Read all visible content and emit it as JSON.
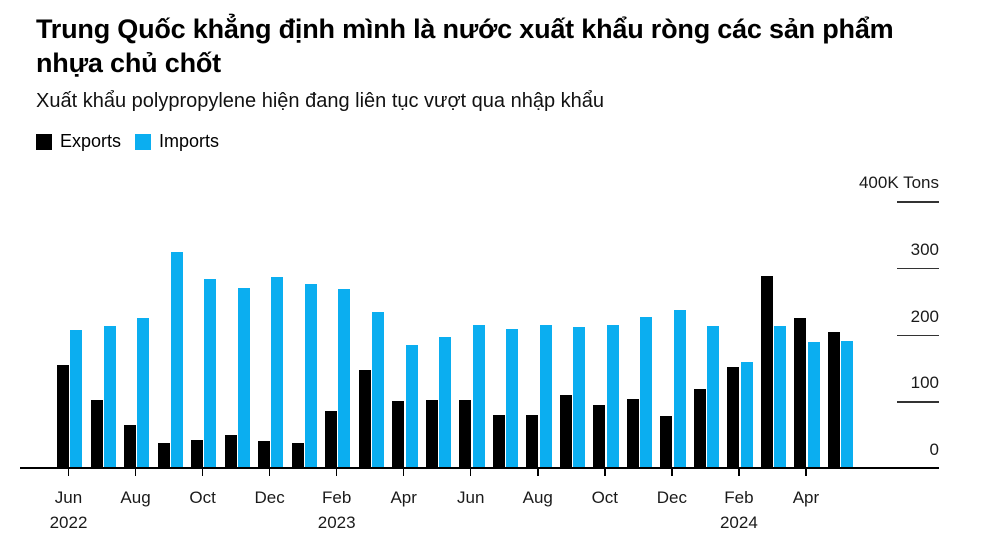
{
  "header": {
    "title": "Trung Quốc khẳng định mình là nước xuất khẩu ròng các sản phẩm nhựa chủ chốt",
    "subtitle": "Xuất khẩu polypropylene hiện đang liên tục vượt qua nhập khẩu"
  },
  "colors": {
    "exports": "#000000",
    "imports": "#0BAEF0",
    "axis": "#000000",
    "tick_label": "#1a1a1a"
  },
  "chart_data": {
    "type": "bar",
    "title": "Trung Quốc khẳng định mình là nước xuất khẩu ròng các sản phẩm nhựa chủ chốt",
    "subtitle": "Xuất khẩu polypropylene hiện đang liên tục vượt qua nhập khẩu",
    "legend_position": "top-left",
    "grid": false,
    "ylim": [
      0,
      400
    ],
    "y_axis": {
      "side": "right",
      "unit_label": "400K Tons",
      "ticks": [
        {
          "value": 0,
          "label": "0"
        },
        {
          "value": 100,
          "label": "100"
        },
        {
          "value": 200,
          "label": "200"
        },
        {
          "value": 300,
          "label": "300"
        },
        {
          "value": 400,
          "label": "400K Tons"
        }
      ]
    },
    "categories": [
      "Jun 2022",
      "Jul 2022",
      "Aug 2022",
      "Sep 2022",
      "Oct 2022",
      "Nov 2022",
      "Dec 2022",
      "Jan 2023",
      "Feb 2023",
      "Mar 2023",
      "Apr 2023",
      "May 2023",
      "Jun 2023",
      "Jul 2023",
      "Aug 2023",
      "Sep 2023",
      "Oct 2023",
      "Nov 2023",
      "Dec 2023",
      "Jan 2024",
      "Feb 2024",
      "Mar 2024",
      "Apr 2024",
      "May 2024"
    ],
    "series": [
      {
        "name": "Exports",
        "color": "#000000",
        "values": [
          154,
          102,
          64,
          38,
          42,
          49,
          40,
          38,
          85,
          147,
          100,
          102,
          102,
          80,
          79,
          109,
          95,
          103,
          78,
          119,
          151,
          288,
          224,
          203
        ]
      },
      {
        "name": "Imports",
        "color": "#0BAEF0",
        "values": [
          206,
          213,
          225,
          324,
          283,
          269,
          286,
          276,
          268,
          233,
          184,
          196,
          214,
          208,
          214,
          211,
          214,
          226,
          236,
          213,
          159,
          213,
          189,
          190
        ]
      }
    ],
    "x_tick_labels": [
      {
        "index": 0,
        "month": "Jun",
        "year": "2022"
      },
      {
        "index": 2,
        "month": "Aug",
        "year": ""
      },
      {
        "index": 4,
        "month": "Oct",
        "year": ""
      },
      {
        "index": 6,
        "month": "Dec",
        "year": ""
      },
      {
        "index": 8,
        "month": "Feb",
        "year": "2023"
      },
      {
        "index": 10,
        "month": "Apr",
        "year": ""
      },
      {
        "index": 12,
        "month": "Jun",
        "year": ""
      },
      {
        "index": 14,
        "month": "Aug",
        "year": ""
      },
      {
        "index": 16,
        "month": "Oct",
        "year": ""
      },
      {
        "index": 18,
        "month": "Dec",
        "year": ""
      },
      {
        "index": 20,
        "month": "Feb",
        "year": "2024"
      },
      {
        "index": 22,
        "month": "Apr",
        "year": ""
      }
    ]
  }
}
